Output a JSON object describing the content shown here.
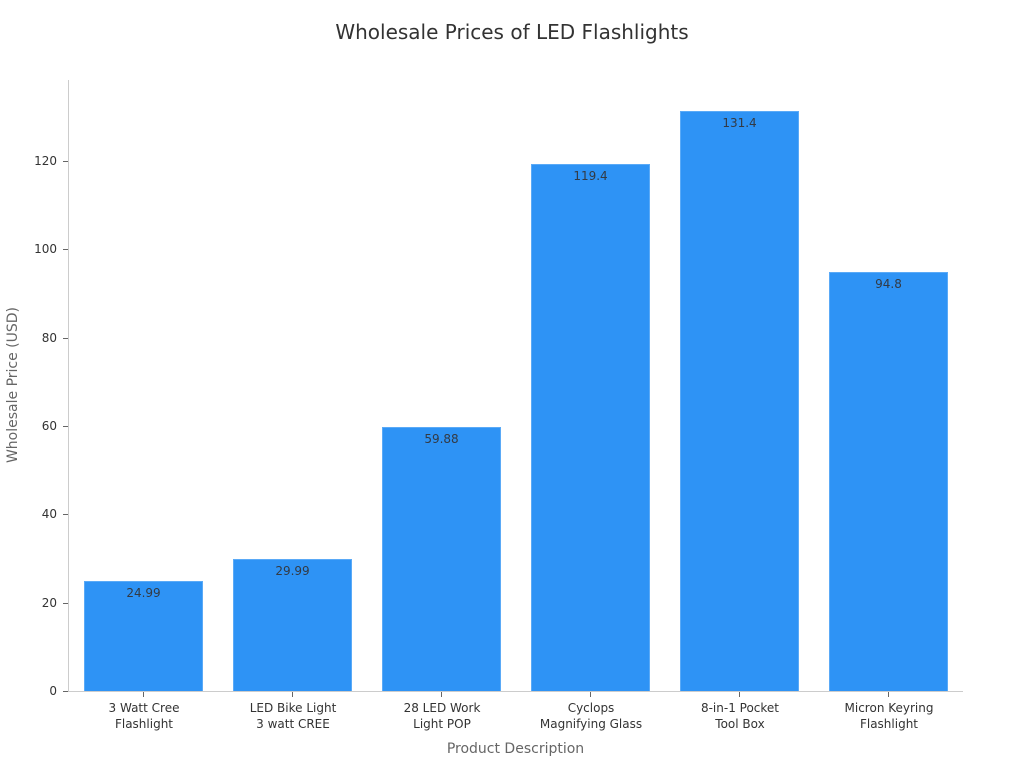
{
  "chart_data": {
    "type": "bar",
    "title": "Wholesale Prices of LED Flashlights",
    "xlabel": "Product Description",
    "ylabel": "Wholesale Price (USD)",
    "categories": [
      "3 Watt Cree Flashlight",
      "LED Bike Light 3 watt CREE",
      "28 LED Work Light POP",
      "Cyclops Magnifying Glass",
      "8-in-1 Pocket Tool Box",
      "Micron Keyring Flashlight"
    ],
    "category_lines": [
      [
        "3 Watt Cree",
        "Flashlight"
      ],
      [
        "LED Bike Light",
        "3 watt CREE"
      ],
      [
        "28 LED Work",
        "Light POP"
      ],
      [
        "Cyclops",
        "Magnifying Glass"
      ],
      [
        "8-in-1 Pocket",
        "Tool Box"
      ],
      [
        "Micron Keyring",
        "Flashlight"
      ]
    ],
    "values": [
      24.99,
      29.99,
      59.88,
      119.4,
      131.4,
      94.8
    ],
    "value_labels": [
      "24.99",
      "29.99",
      "59.88",
      "119.4",
      "131.4",
      "94.8"
    ],
    "yticks": [
      0,
      20,
      40,
      60,
      80,
      100,
      120
    ],
    "ylim": [
      0,
      138
    ],
    "grid": false,
    "legend": null,
    "bar_color": "#2e93f5"
  }
}
